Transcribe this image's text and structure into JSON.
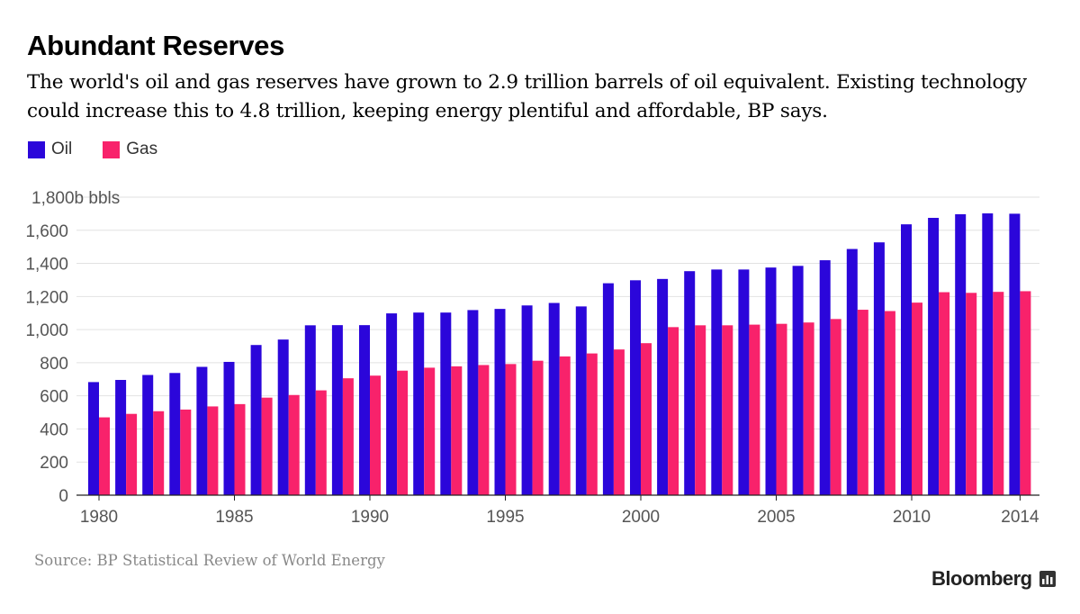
{
  "title": "Abundant Reserves",
  "subtitle": "The world's oil and gas reserves have grown to 2.9 trillion barrels of oil equivalent. Existing technology could increase this to 4.8 trillion, keeping energy plentiful and affordable, BP says.",
  "source": "Source: BP Statistical Review of World Energy",
  "brand": "Bloomberg",
  "chart_data": {
    "type": "bar",
    "title": "Abundant Reserves",
    "xlabel": "",
    "ylabel": "1,800b bbls",
    "ylim": [
      0,
      1800
    ],
    "grid": true,
    "legend": "top-left",
    "yticks": [
      0,
      200,
      400,
      600,
      800,
      1000,
      1200,
      1400,
      1600,
      1800
    ],
    "ytick_labels": [
      "0",
      "200",
      "400",
      "600",
      "800",
      "1,000",
      "1,200",
      "1,400",
      "1,600",
      "1,800b bbls"
    ],
    "xtick_labels": [
      "1980",
      "1985",
      "1990",
      "1995",
      "2000",
      "2005",
      "2010",
      "2014"
    ],
    "categories": [
      1980,
      1981,
      1982,
      1983,
      1984,
      1985,
      1986,
      1987,
      1988,
      1989,
      1990,
      1991,
      1992,
      1993,
      1994,
      1995,
      1996,
      1997,
      1998,
      1999,
      2000,
      2001,
      2002,
      2003,
      2004,
      2005,
      2006,
      2007,
      2008,
      2009,
      2010,
      2011,
      2012,
      2013,
      2014
    ],
    "series": [
      {
        "name": "Oil",
        "color": "#2b06da",
        "values": [
          683,
          696,
          726,
          738,
          775,
          805,
          907,
          940,
          1026,
          1027,
          1027,
          1098,
          1103,
          1103,
          1118,
          1125,
          1146,
          1161,
          1140,
          1280,
          1298,
          1306,
          1353,
          1363,
          1363,
          1375,
          1385,
          1419,
          1487,
          1527,
          1636,
          1675,
          1697,
          1702,
          1700
        ]
      },
      {
        "name": "Gas",
        "color": "#f8226b",
        "values": [
          470,
          491,
          507,
          517,
          536,
          550,
          589,
          605,
          633,
          706,
          722,
          752,
          770,
          778,
          786,
          792,
          812,
          838,
          856,
          880,
          918,
          1015,
          1026,
          1026,
          1030,
          1035,
          1043,
          1064,
          1120,
          1112,
          1163,
          1226,
          1222,
          1228,
          1232
        ]
      }
    ]
  }
}
